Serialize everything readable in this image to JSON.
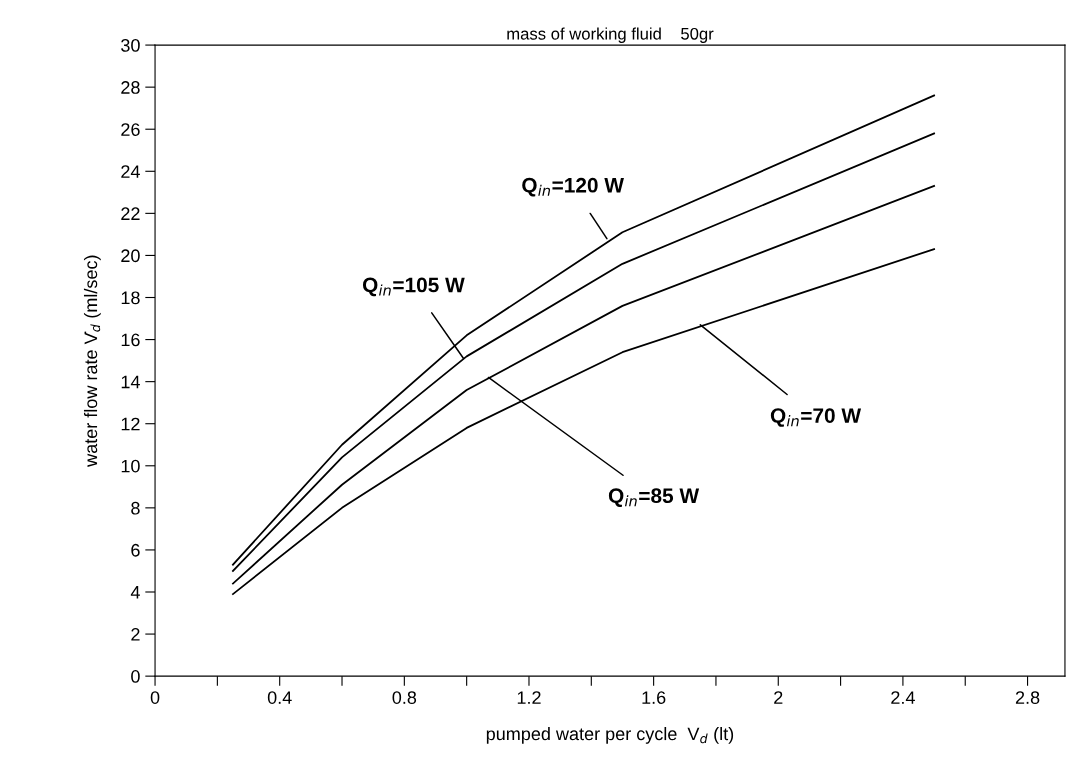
{
  "chart_data": {
    "type": "line",
    "title": "mass of working fluid    50gr",
    "xlabel": "pumped water per cycle  V$_{d}$ (lt)",
    "ylabel": "water flow rate V̇$_{d}$ (ml/sec)",
    "x": [
      0.25,
      0.6,
      1.0,
      1.5,
      2.5
    ],
    "series": [
      {
        "color": "#000000",
        "values": [
          5.3,
          11.0,
          16.2,
          21.1,
          27.6
        ]
      },
      {
        "color": "#000000",
        "values": [
          5.0,
          10.4,
          15.2,
          19.6,
          25.8
        ]
      },
      {
        "color": "#000000",
        "values": [
          4.4,
          9.1,
          13.6,
          17.6,
          23.3
        ]
      },
      {
        "color": "#000000",
        "values": [
          3.9,
          8.0,
          11.8,
          15.4,
          20.3
        ]
      }
    ],
    "annotations": [
      {
        "text": "Q$_{in}$=120 W",
        "x": 1.45,
        "y": 20.8
      },
      {
        "text": "Q$_{in}$=105 W",
        "x": 0.99,
        "y": 15.1
      },
      {
        "text": "Q$_{in}$=85 W",
        "x": 1.07,
        "y": 14.2
      },
      {
        "text": "Q$_{in}$=70 W",
        "x": 1.75,
        "y": 16.7
      }
    ],
    "xlim": [
      0,
      2.92
    ],
    "ylim": [
      0,
      30
    ],
    "xticks": [
      0,
      {
        "value": 0.2,
        "label": null
      },
      0.4,
      {
        "value": 0.6,
        "label": null
      },
      0.8,
      {
        "value": 1.0,
        "label": null
      },
      1.2,
      {
        "value": 1.4,
        "label": null
      },
      1.6,
      {
        "value": 1.8,
        "label": null
      },
      2,
      {
        "value": 2.2,
        "label": null
      },
      2.4,
      {
        "value": 2.6,
        "label": null
      },
      2.8
    ],
    "yticks": [
      0,
      2,
      4,
      6,
      8,
      10,
      12,
      14,
      16,
      18,
      20,
      22,
      24,
      26,
      28,
      30
    ],
    "grid": false,
    "legend": false,
    "marker": "none",
    "line_style": "solid"
  }
}
